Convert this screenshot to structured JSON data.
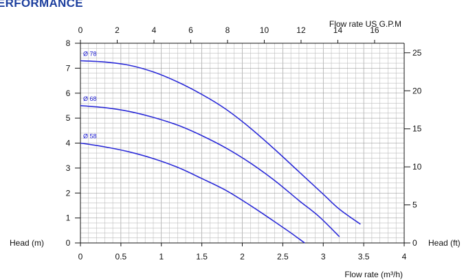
{
  "page_title": "ERFORMANCE",
  "chart_data": {
    "type": "line",
    "x_axis_bottom": {
      "label": "Flow rate  (m³/h)",
      "range": [
        0,
        4
      ],
      "ticks": [
        "0",
        "0.5",
        "1",
        "1.5",
        "2",
        "2.5",
        "3",
        "3.5",
        "4"
      ]
    },
    "x_axis_top": {
      "label": "Flow rate US  G.P.M",
      "range": [
        0,
        17.61
      ],
      "ticks": [
        "0",
        "2",
        "4",
        "6",
        "8",
        "10",
        "12",
        "14",
        "16"
      ]
    },
    "y_axis_left": {
      "label": "Head (m)",
      "range": [
        0,
        8
      ],
      "ticks": [
        "0",
        "1",
        "2",
        "3",
        "4",
        "5",
        "6",
        "7",
        "8"
      ]
    },
    "y_axis_right": {
      "label": "Head (ft)",
      "range": [
        0,
        26.25
      ],
      "ticks": [
        "0",
        "5",
        "10",
        "15",
        "20",
        "25"
      ]
    },
    "grid": true,
    "series": [
      {
        "name": "Ø 78",
        "color": "#2a2ad8",
        "points": [
          [
            0,
            7.3
          ],
          [
            0.3,
            7.25
          ],
          [
            0.6,
            7.12
          ],
          [
            0.9,
            6.85
          ],
          [
            1.2,
            6.45
          ],
          [
            1.5,
            5.95
          ],
          [
            1.8,
            5.35
          ],
          [
            2.1,
            4.6
          ],
          [
            2.4,
            3.75
          ],
          [
            2.7,
            2.85
          ],
          [
            3.0,
            1.95
          ],
          [
            3.2,
            1.35
          ],
          [
            3.46,
            0.75
          ]
        ]
      },
      {
        "name": "Ø 68",
        "color": "#2a2ad8",
        "points": [
          [
            0,
            5.5
          ],
          [
            0.3,
            5.42
          ],
          [
            0.6,
            5.27
          ],
          [
            0.9,
            5.03
          ],
          [
            1.2,
            4.72
          ],
          [
            1.5,
            4.3
          ],
          [
            1.8,
            3.8
          ],
          [
            2.1,
            3.2
          ],
          [
            2.4,
            2.5
          ],
          [
            2.7,
            1.7
          ],
          [
            2.95,
            1.05
          ],
          [
            3.2,
            0.25
          ]
        ]
      },
      {
        "name": "Ø 58",
        "color": "#2a2ad8",
        "points": [
          [
            0,
            4.0
          ],
          [
            0.3,
            3.85
          ],
          [
            0.6,
            3.65
          ],
          [
            0.9,
            3.38
          ],
          [
            1.2,
            3.03
          ],
          [
            1.5,
            2.58
          ],
          [
            1.8,
            2.1
          ],
          [
            2.1,
            1.5
          ],
          [
            2.4,
            0.85
          ],
          [
            2.6,
            0.4
          ],
          [
            2.77,
            0.0
          ]
        ]
      }
    ]
  }
}
